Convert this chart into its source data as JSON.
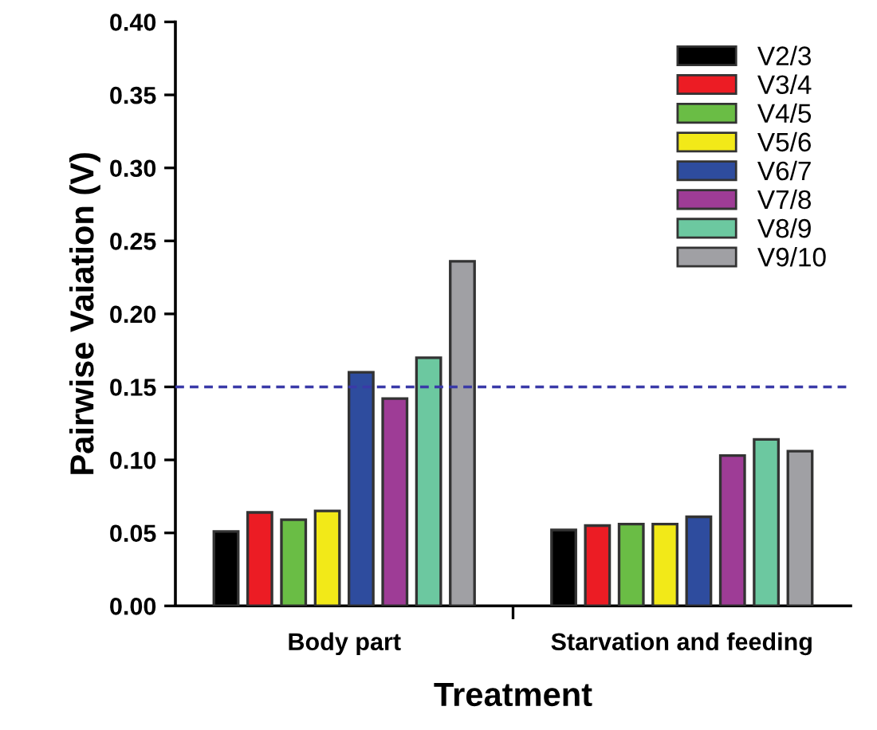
{
  "chart_data": {
    "type": "bar",
    "xlabel": "Treatment",
    "ylabel": "Pairwise Vaiation (V)",
    "categories": [
      "Body part",
      "Starvation and feeding"
    ],
    "series": [
      {
        "name": "V2/3",
        "color": "#000000",
        "values": [
          0.051,
          0.052
        ]
      },
      {
        "name": "V3/4",
        "color": "#ec1c24",
        "values": [
          0.064,
          0.055
        ]
      },
      {
        "name": "V4/5",
        "color": "#6abd45",
        "values": [
          0.059,
          0.056
        ]
      },
      {
        "name": "V5/6",
        "color": "#f2e918",
        "values": [
          0.065,
          0.056
        ]
      },
      {
        "name": "V6/7",
        "color": "#2e4c9e",
        "values": [
          0.16,
          0.061
        ]
      },
      {
        "name": "V7/8",
        "color": "#9e3c96",
        "values": [
          0.142,
          0.103
        ]
      },
      {
        "name": "V8/9",
        "color": "#6cc8a0",
        "values": [
          0.17,
          0.114
        ]
      },
      {
        "name": "V9/10",
        "color": "#a0a0a4",
        "values": [
          0.236,
          0.106
        ]
      }
    ],
    "ylim": [
      0,
      0.4
    ],
    "yticks": [
      {
        "value": 0,
        "label": "0.00"
      },
      0.05,
      {
        "value": 0.1,
        "label": "0.10"
      },
      0.15,
      {
        "value": 0.2,
        "label": "0.20"
      },
      0.25,
      {
        "value": 0.3,
        "label": "0.30"
      },
      0.35,
      {
        "value": 0.4,
        "label": "0.40"
      }
    ],
    "ref_lines": [
      {
        "axis": "y",
        "value": 0.15,
        "color": "#3a3aa8",
        "line_style": "dashed"
      }
    ],
    "legend": "top right",
    "grid": false
  }
}
